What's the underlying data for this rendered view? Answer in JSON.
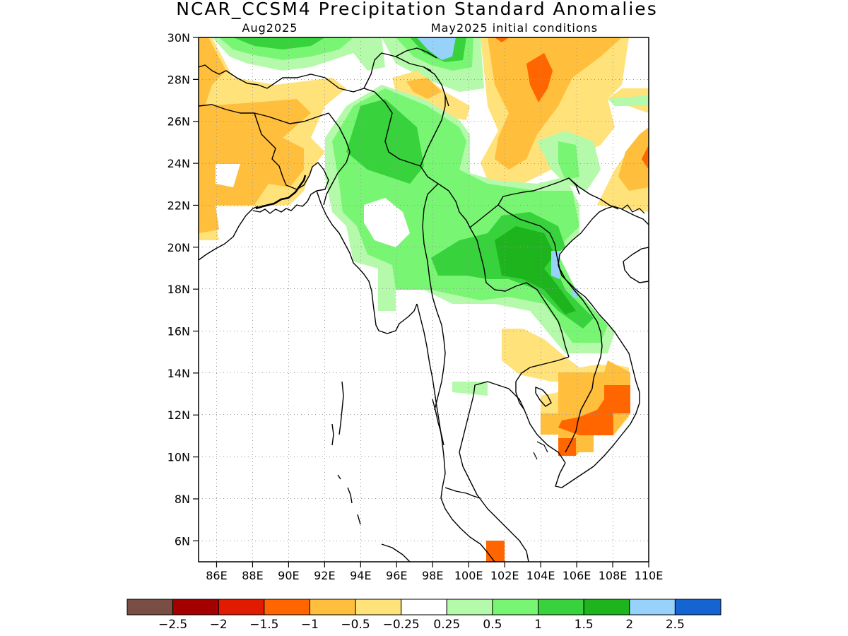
{
  "title": "NCAR_CCSM4 Precipitation Standard Anomalies",
  "subtitle_left": "Aug2025",
  "subtitle_right": "May2025 initial conditions",
  "map": {
    "lon_range": [
      85,
      110
    ],
    "lat_range": [
      5,
      30
    ],
    "lon_ticks": [
      "86E",
      "88E",
      "90E",
      "92E",
      "94E",
      "96E",
      "98E",
      "100E",
      "102E",
      "104E",
      "106E",
      "108E",
      "110E"
    ],
    "lat_ticks": [
      "6N",
      "8N",
      "10N",
      "12N",
      "14N",
      "16N",
      "18N",
      "20N",
      "22N",
      "24N",
      "26N",
      "28N",
      "30N"
    ],
    "grid": true
  },
  "colorbar": {
    "colors": [
      "#7a4e45",
      "#a50000",
      "#e01b00",
      "#ff6600",
      "#ffbe3c",
      "#ffe27a",
      "#ffffff",
      "#b4faaa",
      "#78f573",
      "#37d23c",
      "#1eb41e",
      "#96d2fa",
      "#1464d2"
    ],
    "labels": [
      "−2.5",
      "−2",
      "−1.5",
      "−1",
      "−0.5",
      "−0.25",
      "0.25",
      "0.5",
      "1",
      "1.5",
      "2",
      "2.5"
    ]
  },
  "palette": {
    "neg_0_5": "#ffbe3c",
    "neg_0_25": "#ffe27a",
    "neg_1": "#ff6600",
    "pos_0_5": "#b4faaa",
    "pos_1": "#78f573",
    "pos_1_5": "#37d23c",
    "pos_2": "#1eb41e",
    "pos_2_5": "#96d2fa",
    "coast": "#000000"
  }
}
